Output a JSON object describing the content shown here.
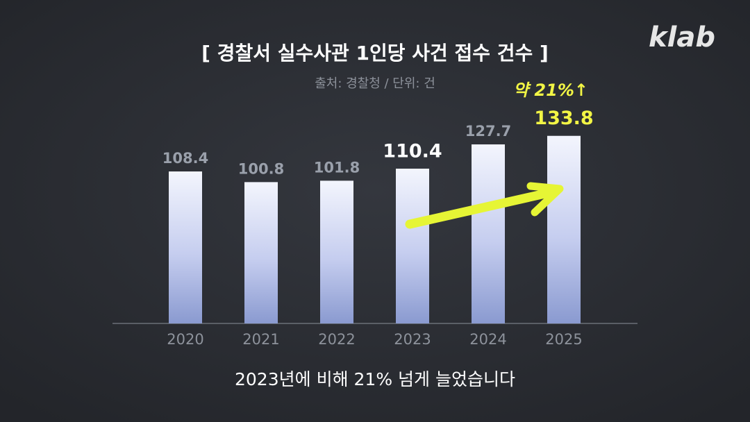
{
  "chart_data": {
    "type": "bar",
    "title": "[ 경찰서 실수사관 1인당 사건 접수 건수 ]",
    "subtitle": "출처: 경찰청 / 단위: 건",
    "logo": "klab",
    "annotation": "약 21%↑",
    "caption": "2023년에 비해 21% 넘게 늘었습니다",
    "categories": [
      "2020",
      "2021",
      "2022",
      "2023",
      "2024",
      "2025"
    ],
    "values": [
      108.4,
      100.8,
      101.8,
      110.4,
      127.7,
      133.8
    ],
    "label_colors": [
      "#9aa0ab",
      "#9aa0ab",
      "#9aa0ab",
      "#ffffff",
      "#9aa0ab",
      "#f2f545"
    ],
    "color": "#8a9ad0"
  }
}
